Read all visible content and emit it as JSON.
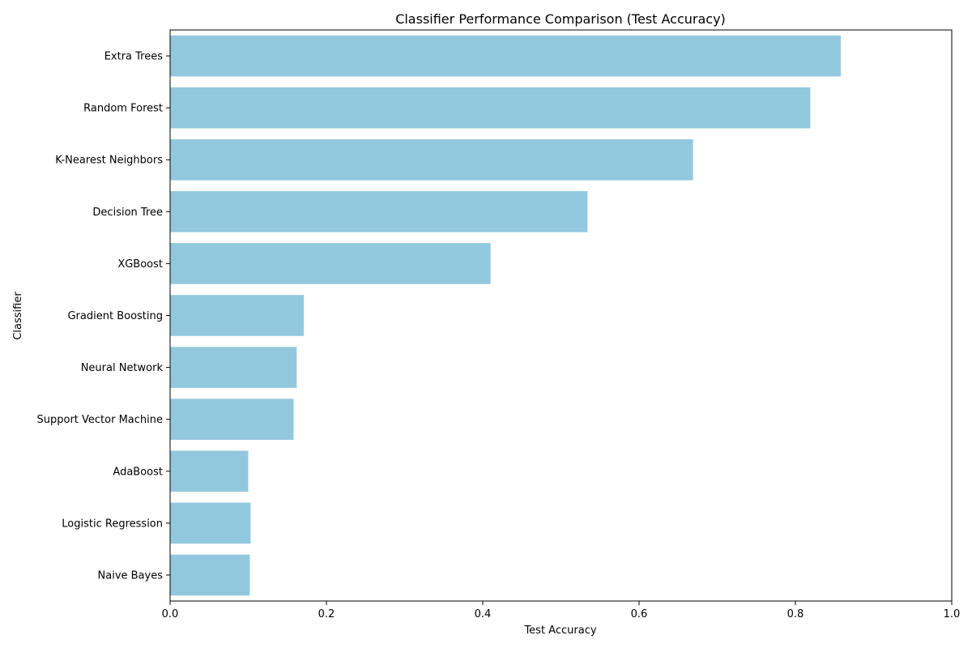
{
  "chart_data": {
    "type": "bar",
    "orientation": "horizontal",
    "title": "Classifier Performance Comparison (Test Accuracy)",
    "xlabel": "Test Accuracy",
    "ylabel": "Classifier",
    "xlim": [
      0,
      1.0
    ],
    "x_ticks": [
      "0.0",
      "0.2",
      "0.4",
      "0.6",
      "0.8",
      "1.0"
    ],
    "grid": false,
    "legend": "none",
    "bar_color": "#92c8de",
    "categories": [
      "Extra Trees",
      "Random Forest",
      "K-Nearest Neighbors",
      "Decision Tree",
      "XGBoost",
      "Gradient Boosting",
      "Neural Network",
      "Support Vector Machine",
      "AdaBoost",
      "Logistic Regression",
      "Naive Bayes"
    ],
    "values": [
      0.858,
      0.819,
      0.669,
      0.534,
      0.41,
      0.171,
      0.162,
      0.158,
      0.1,
      0.103,
      0.102
    ]
  }
}
